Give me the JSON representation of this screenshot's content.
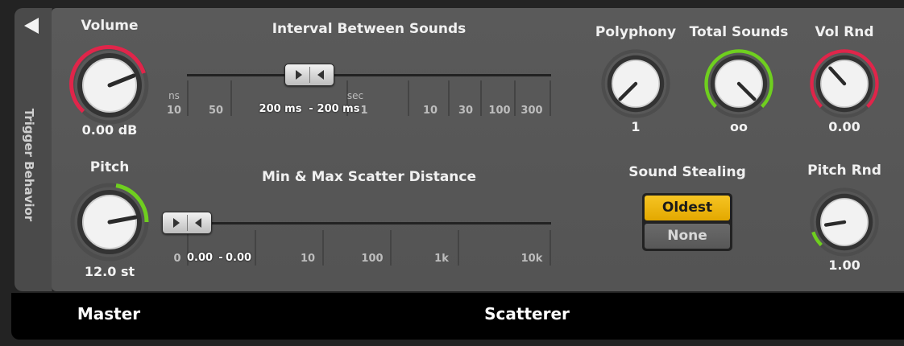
{
  "sidebar": {
    "label": "Trigger Behavior",
    "collapse_icon": "collapse-left-icon"
  },
  "master": {
    "volume": {
      "label": "Volume",
      "value": "0.00 dB",
      "level": 0.5
    },
    "pitch": {
      "label": "Pitch",
      "value": "12.0 st",
      "level": 0.75
    }
  },
  "interval": {
    "label": "Interval Between Sounds",
    "range_min": "200 ms",
    "range_sep": "-",
    "range_max": "200 ms",
    "units": [
      "ns",
      "sec"
    ],
    "ticks": [
      "10",
      "50",
      "1",
      "10",
      "30",
      "100",
      "300"
    ]
  },
  "scatter": {
    "label": "Min & Max Scatter Distance",
    "range_min": "0.00",
    "range_sep": "-",
    "range_max": "0.00",
    "ticks": [
      "0",
      "10",
      "100",
      "1k",
      "10k"
    ]
  },
  "polyphony": {
    "label": "Polyphony",
    "value": "1"
  },
  "total_sounds": {
    "label": "Total Sounds",
    "value": "oo"
  },
  "vol_rnd": {
    "label": "Vol Rnd",
    "value": "0.00"
  },
  "pitch_rnd": {
    "label": "Pitch Rnd",
    "value": "1.00"
  },
  "sound_stealing": {
    "label": "Sound Stealing",
    "options": [
      "Oldest",
      "None"
    ],
    "selected": "Oldest"
  },
  "footer": {
    "left": "Master",
    "right": "Scatterer"
  },
  "colors": {
    "red_ring": "#e0254a",
    "green_ring": "#6fcf1f",
    "active_button": "#f2be1a",
    "panel": "#575757"
  }
}
